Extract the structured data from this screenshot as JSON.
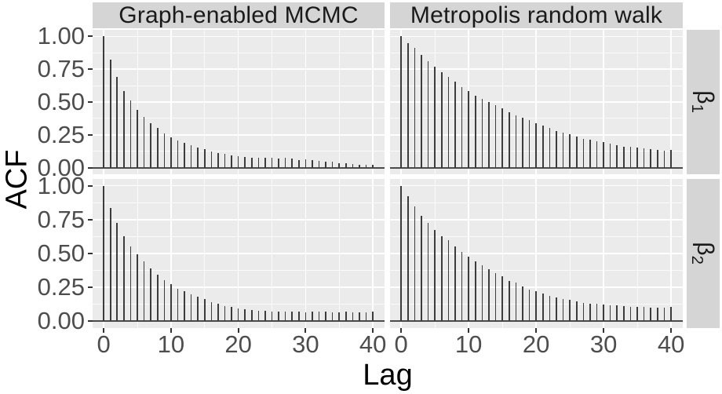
{
  "figure": {
    "y_axis_title": "ACF",
    "x_axis_title": "Lag"
  },
  "chart_data": {
    "type": "bar",
    "title": "",
    "xlabel": "Lag",
    "ylabel": "ACF",
    "ylim": [
      0,
      1
    ],
    "x_range": [
      0,
      40
    ],
    "grid": true,
    "legend": "none",
    "facet_columns": [
      "Graph-enabled MCMC",
      "Metropolis random walk"
    ],
    "facet_rows": [
      {
        "base": "β",
        "sub": "1"
      },
      {
        "base": "β",
        "sub": "2"
      }
    ],
    "x_ticks": [
      0,
      10,
      20,
      30,
      40
    ],
    "x_minor_ticks": [
      5,
      15,
      25,
      35
    ],
    "y_ticks": [
      {
        "label": "1.00",
        "value": 1.0
      },
      {
        "label": "0.75",
        "value": 0.75
      },
      {
        "label": "0.50",
        "value": 0.5
      },
      {
        "label": "0.25",
        "value": 0.25
      },
      {
        "label": "0.00",
        "value": 0.0
      }
    ],
    "y_minor_ticks": [
      0.125,
      0.375,
      0.625,
      0.875
    ],
    "lags": [
      0,
      1,
      2,
      3,
      4,
      5,
      6,
      7,
      8,
      9,
      10,
      11,
      12,
      13,
      14,
      15,
      16,
      17,
      18,
      19,
      20,
      21,
      22,
      23,
      24,
      25,
      26,
      27,
      28,
      29,
      30,
      31,
      32,
      33,
      34,
      35,
      36,
      37,
      38,
      39,
      40
    ],
    "panels": [
      {
        "column": "Graph-enabled MCMC",
        "row": "β1",
        "values": [
          1.0,
          0.82,
          0.69,
          0.585,
          0.51,
          0.44,
          0.385,
          0.34,
          0.3,
          0.26,
          0.23,
          0.21,
          0.19,
          0.17,
          0.155,
          0.14,
          0.125,
          0.113,
          0.103,
          0.094,
          0.087,
          0.082,
          0.078,
          0.074,
          0.078,
          0.074,
          0.071,
          0.078,
          0.071,
          0.059,
          0.062,
          0.055,
          0.049,
          0.043,
          0.048,
          0.035,
          0.031,
          0.027,
          0.024,
          0.02,
          0.024
        ]
      },
      {
        "column": "Metropolis random walk",
        "row": "β1",
        "values": [
          1.0,
          0.95,
          0.91,
          0.86,
          0.81,
          0.77,
          0.73,
          0.69,
          0.655,
          0.615,
          0.585,
          0.55,
          0.525,
          0.5,
          0.475,
          0.45,
          0.425,
          0.4,
          0.38,
          0.36,
          0.337,
          0.32,
          0.3,
          0.28,
          0.265,
          0.253,
          0.238,
          0.222,
          0.214,
          0.202,
          0.194,
          0.182,
          0.174,
          0.162,
          0.158,
          0.152,
          0.147,
          0.139,
          0.135,
          0.131,
          0.138
        ]
      },
      {
        "column": "Graph-enabled MCMC",
        "row": "β2",
        "values": [
          1.0,
          0.837,
          0.725,
          0.627,
          0.555,
          0.494,
          0.441,
          0.388,
          0.343,
          0.304,
          0.275,
          0.241,
          0.22,
          0.2,
          0.18,
          0.163,
          0.143,
          0.127,
          0.112,
          0.104,
          0.096,
          0.088,
          0.084,
          0.08,
          0.075,
          0.073,
          0.07,
          0.072,
          0.074,
          0.07,
          0.068,
          0.071,
          0.073,
          0.07,
          0.067,
          0.065,
          0.07,
          0.068,
          0.066,
          0.067,
          0.071
        ]
      },
      {
        "column": "Metropolis random walk",
        "row": "β2",
        "values": [
          1.0,
          0.92,
          0.847,
          0.78,
          0.725,
          0.672,
          0.63,
          0.598,
          0.555,
          0.51,
          0.475,
          0.445,
          0.416,
          0.382,
          0.357,
          0.33,
          0.298,
          0.284,
          0.259,
          0.235,
          0.222,
          0.206,
          0.19,
          0.176,
          0.167,
          0.157,
          0.147,
          0.137,
          0.131,
          0.127,
          0.124,
          0.12,
          0.116,
          0.112,
          0.108,
          0.106,
          0.104,
          0.102,
          0.1,
          0.098,
          0.104
        ]
      }
    ],
    "colors": {
      "background": "#ffffff",
      "panel_bg": "#ebebeb",
      "strip_bg": "#d5d5d5",
      "grid": "#ffffff",
      "bar": "#3c3c3c",
      "baseline": "#4a4a4a",
      "axis_tick": "#333333",
      "tick_label": "#4d4d4d",
      "strip_text": "#1a1a1a",
      "axis_title": "#000000"
    }
  }
}
